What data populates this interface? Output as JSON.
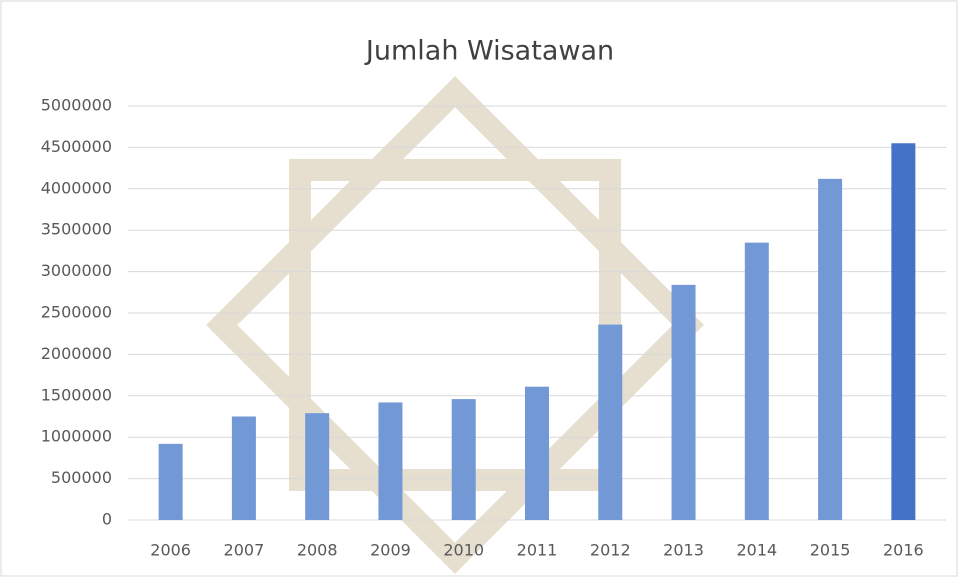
{
  "chart_data": {
    "type": "bar",
    "title": "Jumlah Wisatawan",
    "categories": [
      "2006",
      "2007",
      "2008",
      "2009",
      "2010",
      "2011",
      "2012",
      "2013",
      "2014",
      "2015",
      "2016"
    ],
    "values": [
      920000,
      1250000,
      1290000,
      1420000,
      1460000,
      1610000,
      2360000,
      2840000,
      3350000,
      4120000,
      4550000
    ],
    "colors": [
      "#7298d6",
      "#7298d6",
      "#7298d6",
      "#7298d6",
      "#7298d6",
      "#7298d6",
      "#7298d6",
      "#7298d6",
      "#7298d6",
      "#7298d6",
      "#4472c4"
    ],
    "ylim": [
      0,
      5000000
    ],
    "yticks": [
      0,
      500000,
      1000000,
      1500000,
      2000000,
      2500000,
      3000000,
      3500000,
      4000000,
      4500000,
      5000000
    ],
    "grid": true
  }
}
